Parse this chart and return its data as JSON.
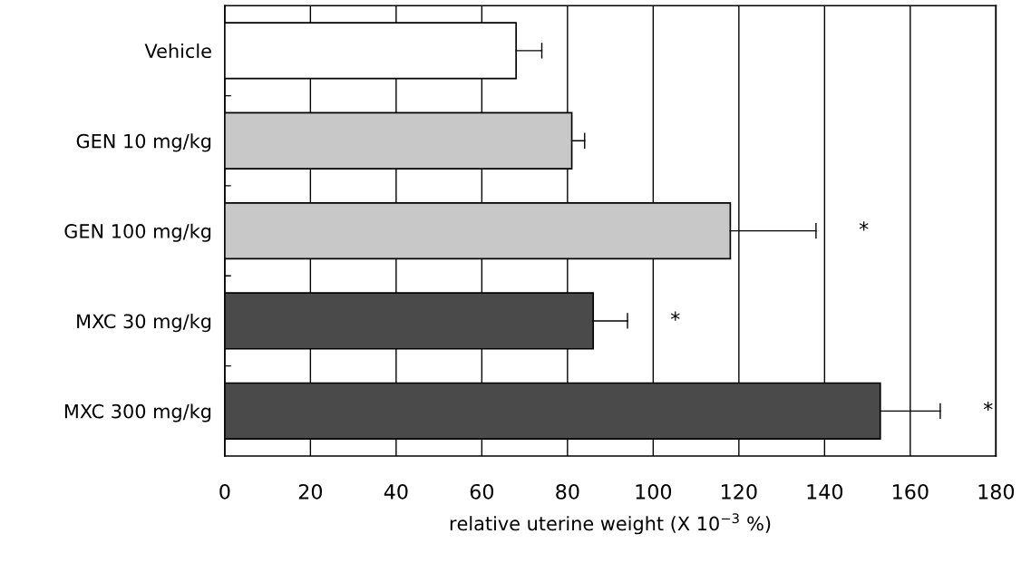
{
  "chart_data": {
    "type": "bar",
    "orientation": "horizontal",
    "categories": [
      "Vehicle",
      "GEN 10 mg/kg",
      "GEN 100 mg/kg",
      "MXC 30 mg/kg",
      "MXC 300 mg/kg"
    ],
    "values": [
      68,
      81,
      118,
      86,
      153
    ],
    "errors": [
      [
        68,
        74
      ],
      [
        81,
        84
      ],
      [
        118,
        138
      ],
      [
        86,
        94
      ],
      [
        153,
        167
      ]
    ],
    "colors": [
      "#ffffff",
      "#c8c8c8",
      "#c8c8c8",
      "#4a4a4a",
      "#4a4a4a"
    ],
    "xlabel": "relative uterine weight (X 10$^{−3}$ %)",
    "xlim": [
      0,
      180
    ],
    "xticks": [
      0,
      20,
      40,
      60,
      80,
      100,
      120,
      140,
      160,
      180
    ],
    "grid": "x",
    "annotations": [
      "*",
      "*",
      "*"
    ]
  }
}
